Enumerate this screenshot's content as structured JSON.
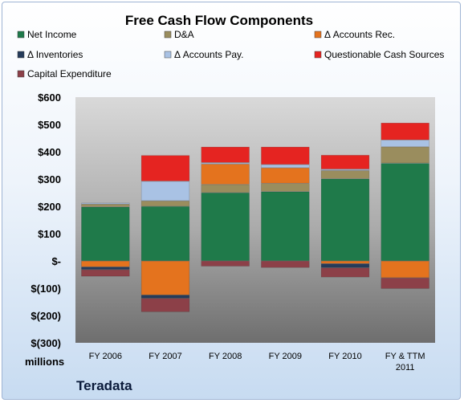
{
  "chart_data": {
    "type": "bar",
    "stacked": true,
    "title": "Free Cash Flow Components",
    "categories": [
      "FY 2006",
      "FY 2007",
      "FY 2008",
      "FY 2009",
      "FY 2010",
      "FY & TTM\n2011"
    ],
    "series": [
      {
        "name": "Net Income",
        "color": "#1f7a4a",
        "values": [
          198,
          200,
          250,
          254,
          301,
          358
        ]
      },
      {
        "name": "D&A",
        "color": "#9a8d5e",
        "values": [
          10,
          20,
          30,
          30,
          30,
          60
        ]
      },
      {
        "name": "Δ Accounts Rec.",
        "color": "#e4731e",
        "values": [
          -22,
          -125,
          75,
          57,
          -10,
          -62
        ]
      },
      {
        "name": "Δ Inventories",
        "color": "#253b5a",
        "values": [
          -10,
          -12,
          0,
          0,
          -15,
          0
        ]
      },
      {
        "name": "Δ Accounts Pay.",
        "color": "#a9c2e4",
        "values": [
          5,
          72,
          5,
          12,
          5,
          25
        ]
      },
      {
        "name": "Questionable Cash Sources",
        "color": "#e52421",
        "values": [
          0,
          95,
          58,
          65,
          52,
          63
        ]
      },
      {
        "name": "Capital Expenditure",
        "color": "#8c4048",
        "values": [
          -25,
          -50,
          -20,
          -25,
          -35,
          -40
        ]
      }
    ],
    "ylim": [
      -300,
      600
    ],
    "ytick_values": [
      600,
      500,
      400,
      300,
      200,
      100,
      0,
      -100,
      -200,
      -300
    ],
    "ytick_labels": [
      "$600",
      "$500",
      "$400",
      "$300",
      "$200",
      "$100",
      "$-",
      "$(100)",
      "$(200)",
      "$(300)"
    ],
    "units_label": "millions",
    "grid": false,
    "legend_position": "top"
  },
  "company": "Teradata"
}
